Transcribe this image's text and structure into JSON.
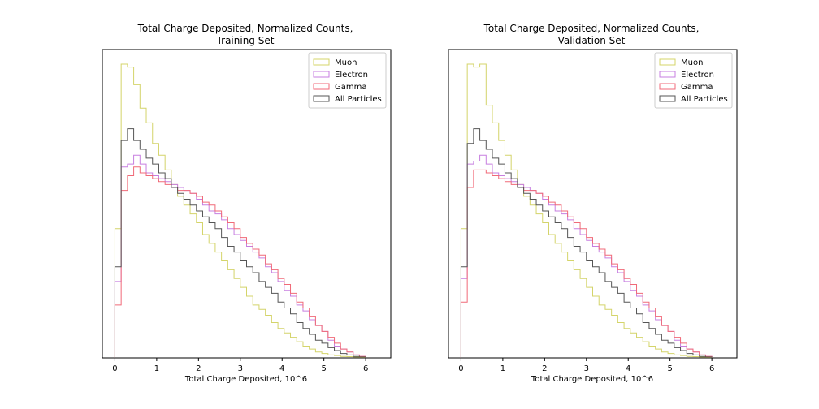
{
  "chart_data": [
    {
      "type": "histogram",
      "title": "Total Charge Deposited, Normalized Counts,\nTraining Set",
      "xlabel": "Total Charge Deposited, 10^6",
      "ylabel": "",
      "xlim": [
        -0.3,
        6.6
      ],
      "ylim": [
        0,
        1.0
      ],
      "xticks": [
        0,
        1,
        2,
        3,
        4,
        5,
        6
      ],
      "yticks": [],
      "grid": false,
      "legend_position": "top-right",
      "bin_edges": [
        0.0,
        0.15,
        0.3,
        0.45,
        0.6,
        0.75,
        0.9,
        1.05,
        1.2,
        1.35,
        1.5,
        1.65,
        1.8,
        1.95,
        2.1,
        2.25,
        2.4,
        2.55,
        2.7,
        2.85,
        3.0,
        3.15,
        3.3,
        3.45,
        3.6,
        3.75,
        3.9,
        4.05,
        4.2,
        4.35,
        4.5,
        4.65,
        4.8,
        4.95,
        5.1,
        5.25,
        5.4,
        5.55,
        5.7,
        5.85,
        6.0
      ],
      "series": [
        {
          "name": "Muon",
          "color": "#d4d46a",
          "values": [
            0.44,
            1.0,
            0.99,
            0.93,
            0.85,
            0.8,
            0.73,
            0.69,
            0.64,
            0.59,
            0.55,
            0.52,
            0.49,
            0.46,
            0.42,
            0.39,
            0.36,
            0.33,
            0.3,
            0.27,
            0.24,
            0.21,
            0.18,
            0.165,
            0.145,
            0.12,
            0.1,
            0.085,
            0.07,
            0.055,
            0.04,
            0.03,
            0.02,
            0.015,
            0.01,
            0.008,
            0.005,
            0.004,
            0.003,
            0.002
          ]
        },
        {
          "name": "Electron",
          "color": "#c77fe0",
          "values": [
            0.26,
            0.65,
            0.66,
            0.69,
            0.66,
            0.63,
            0.62,
            0.61,
            0.6,
            0.59,
            0.58,
            0.57,
            0.56,
            0.54,
            0.52,
            0.5,
            0.49,
            0.47,
            0.44,
            0.42,
            0.4,
            0.38,
            0.36,
            0.34,
            0.31,
            0.29,
            0.26,
            0.23,
            0.21,
            0.18,
            0.16,
            0.13,
            0.11,
            0.09,
            0.06,
            0.04,
            0.03,
            0.02,
            0.01,
            0.005
          ]
        },
        {
          "name": "Gamma",
          "color": "#f06a78",
          "values": [
            0.18,
            0.57,
            0.62,
            0.65,
            0.63,
            0.62,
            0.61,
            0.6,
            0.59,
            0.58,
            0.57,
            0.57,
            0.56,
            0.55,
            0.53,
            0.52,
            0.5,
            0.48,
            0.46,
            0.44,
            0.41,
            0.39,
            0.37,
            0.35,
            0.32,
            0.3,
            0.27,
            0.25,
            0.22,
            0.19,
            0.17,
            0.14,
            0.11,
            0.09,
            0.07,
            0.05,
            0.03,
            0.02,
            0.01,
            0.005
          ]
        },
        {
          "name": "All Particles",
          "color": "#555555",
          "values": [
            0.31,
            0.74,
            0.78,
            0.74,
            0.71,
            0.68,
            0.66,
            0.63,
            0.61,
            0.58,
            0.56,
            0.54,
            0.52,
            0.5,
            0.48,
            0.46,
            0.44,
            0.41,
            0.38,
            0.36,
            0.33,
            0.31,
            0.29,
            0.26,
            0.24,
            0.22,
            0.19,
            0.17,
            0.15,
            0.12,
            0.1,
            0.08,
            0.06,
            0.05,
            0.035,
            0.025,
            0.015,
            0.01,
            0.005,
            0.003
          ]
        }
      ]
    },
    {
      "type": "histogram",
      "title": "Total Charge Deposited, Normalized Counts,\nValidation Set",
      "xlabel": "Total Charge Deposited, 10^6",
      "ylabel": "",
      "xlim": [
        -0.3,
        6.6
      ],
      "ylim": [
        0,
        1.0
      ],
      "xticks": [
        0,
        1,
        2,
        3,
        4,
        5,
        6
      ],
      "yticks": [],
      "grid": false,
      "legend_position": "top-right",
      "bin_edges": [
        0.0,
        0.15,
        0.3,
        0.45,
        0.6,
        0.75,
        0.9,
        1.05,
        1.2,
        1.35,
        1.5,
        1.65,
        1.8,
        1.95,
        2.1,
        2.25,
        2.4,
        2.55,
        2.7,
        2.85,
        3.0,
        3.15,
        3.3,
        3.45,
        3.6,
        3.75,
        3.9,
        4.05,
        4.2,
        4.35,
        4.5,
        4.65,
        4.8,
        4.95,
        5.1,
        5.25,
        5.4,
        5.55,
        5.7,
        5.85,
        6.0
      ],
      "series": [
        {
          "name": "Muon",
          "color": "#d4d46a",
          "values": [
            0.44,
            1.0,
            0.99,
            1.0,
            0.86,
            0.8,
            0.74,
            0.69,
            0.64,
            0.59,
            0.55,
            0.52,
            0.49,
            0.46,
            0.42,
            0.39,
            0.36,
            0.33,
            0.3,
            0.27,
            0.24,
            0.21,
            0.18,
            0.165,
            0.145,
            0.12,
            0.1,
            0.085,
            0.07,
            0.055,
            0.04,
            0.03,
            0.02,
            0.015,
            0.01,
            0.008,
            0.005,
            0.004,
            0.003,
            0.002
          ]
        },
        {
          "name": "Electron",
          "color": "#c77fe0",
          "values": [
            0.27,
            0.66,
            0.67,
            0.69,
            0.66,
            0.63,
            0.62,
            0.61,
            0.6,
            0.59,
            0.58,
            0.57,
            0.56,
            0.54,
            0.52,
            0.5,
            0.49,
            0.47,
            0.44,
            0.42,
            0.4,
            0.38,
            0.36,
            0.34,
            0.31,
            0.29,
            0.26,
            0.23,
            0.21,
            0.18,
            0.16,
            0.13,
            0.11,
            0.09,
            0.06,
            0.04,
            0.03,
            0.02,
            0.01,
            0.005
          ]
        },
        {
          "name": "Gamma",
          "color": "#f06a78",
          "values": [
            0.19,
            0.58,
            0.64,
            0.64,
            0.63,
            0.62,
            0.61,
            0.6,
            0.59,
            0.58,
            0.57,
            0.57,
            0.56,
            0.55,
            0.53,
            0.52,
            0.5,
            0.48,
            0.46,
            0.44,
            0.41,
            0.39,
            0.37,
            0.35,
            0.32,
            0.3,
            0.27,
            0.25,
            0.22,
            0.19,
            0.17,
            0.14,
            0.11,
            0.09,
            0.07,
            0.05,
            0.03,
            0.02,
            0.01,
            0.005
          ]
        },
        {
          "name": "All Particles",
          "color": "#555555",
          "values": [
            0.31,
            0.73,
            0.78,
            0.74,
            0.71,
            0.68,
            0.66,
            0.63,
            0.61,
            0.58,
            0.56,
            0.54,
            0.52,
            0.5,
            0.48,
            0.46,
            0.44,
            0.41,
            0.38,
            0.36,
            0.33,
            0.31,
            0.29,
            0.26,
            0.24,
            0.22,
            0.19,
            0.17,
            0.15,
            0.12,
            0.1,
            0.08,
            0.06,
            0.05,
            0.035,
            0.025,
            0.015,
            0.01,
            0.005,
            0.003
          ]
        }
      ]
    }
  ]
}
